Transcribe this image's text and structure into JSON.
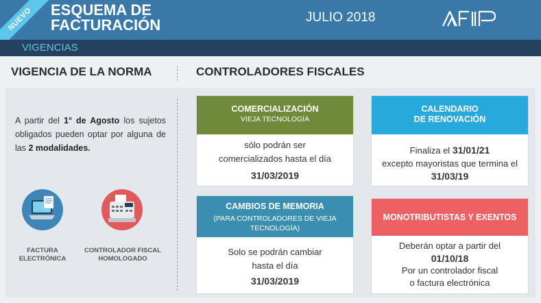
{
  "header": {
    "badge": "NUEVO",
    "title_line1": "ESQUEMA DE",
    "title_line2": "FACTURACIÓN",
    "date": "JULIO 2018",
    "logo_text": "AFIP",
    "subtitle": "VIGENCIAS"
  },
  "left": {
    "heading": "VIGENCIA DE LA NORMA",
    "intro_a": "A partir del ",
    "intro_b": "1° de Agosto",
    "intro_c": " los sujetos obligados pueden optar por alguna de las ",
    "intro_d": "2 modalidades.",
    "icons": [
      {
        "name": "factura-electronica-icon",
        "label1": "FACTURA",
        "label2": "ELECTRÓNICA"
      },
      {
        "name": "controlador-fiscal-icon",
        "label1": "CONTROLADOR FISCAL",
        "label2": "HOMOLOGADO"
      }
    ]
  },
  "right": {
    "heading": "CONTROLADORES FISCALES",
    "cards": [
      {
        "title": "COMERCIALIZACIÓN",
        "subtitle": "VIEJA TECNOLOGÍA",
        "l1": "sólo podrán ser",
        "l2": "comercializados hasta el día",
        "l3": "31/03/2019",
        "color": "#6e8a3a"
      },
      {
        "title1": "CALENDARIO",
        "title2": "DE RENOVACIÓN",
        "l1a": "Finaliza el ",
        "l1b": "31/01/21",
        "l2": "excepto mayoristas que termina el",
        "l3": "31/03/19",
        "color": "#27a9dc"
      },
      {
        "title": "CAMBIOS DE MEMORIA",
        "subtitle1": "(PARA CONTROLADORES DE VIEJA",
        "subtitle2": "TECNOLOGÍA)",
        "l1": "Solo se podrán cambiar",
        "l2": "hasta el día",
        "l3": "31/03/2019",
        "color": "#3a8fb0"
      },
      {
        "title": "MONOTRIBUTISTAS Y EXENTOS",
        "l1": "Deberán optar a partir del",
        "l2": "01/10/18",
        "l3": "Por un controlador fiscal",
        "l4": "o factura electrónica",
        "color": "#ee6162"
      }
    ]
  }
}
